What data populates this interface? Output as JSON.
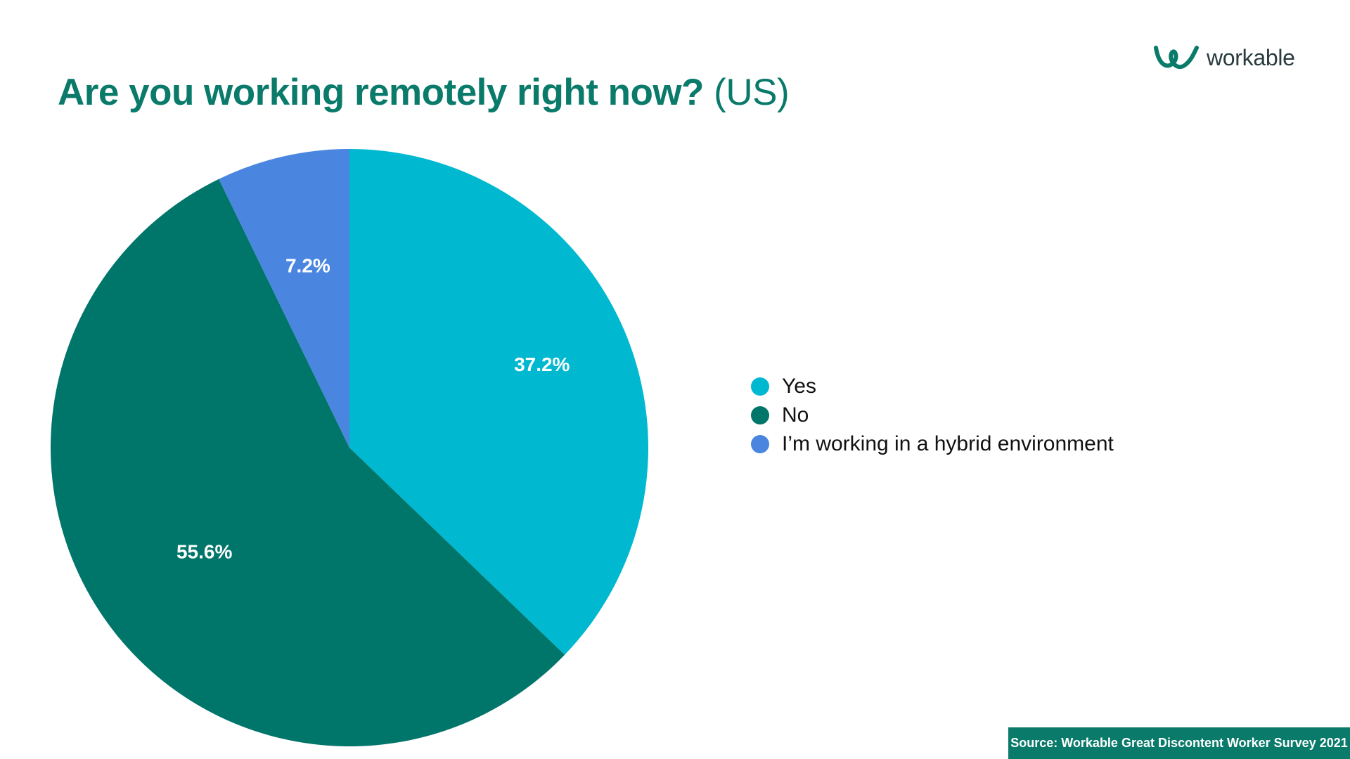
{
  "title": {
    "question": "Are you working remotely right now?",
    "region": "(US)"
  },
  "logo": {
    "text": "workable",
    "icon": "workable-logo-icon"
  },
  "source": "Source: Workable Great Discontent Worker Survey 2021",
  "colors": {
    "title": "#0a7a6a",
    "yes": "#00b8cf",
    "no": "#00756a",
    "hybrid": "#4a86e0",
    "source_bg": "#0a7a6a"
  },
  "chart_data": {
    "type": "pie",
    "title": "Are you working remotely right now? (US)",
    "categories": [
      "Yes",
      "No",
      "I’m working in a hybrid environment"
    ],
    "values": [
      37.2,
      55.6,
      7.2
    ],
    "labels": [
      "37.2%",
      "55.6%",
      "7.2%"
    ],
    "colors": [
      "#00b8cf",
      "#00756a",
      "#4a86e0"
    ],
    "start": "12 o'clock",
    "direction": "clockwise",
    "legend_position": "right"
  },
  "legend": [
    {
      "label": "Yes",
      "color": "#00b8cf"
    },
    {
      "label": "No",
      "color": "#00756a"
    },
    {
      "label": "I’m working in a hybrid environment",
      "color": "#4a86e0"
    }
  ]
}
